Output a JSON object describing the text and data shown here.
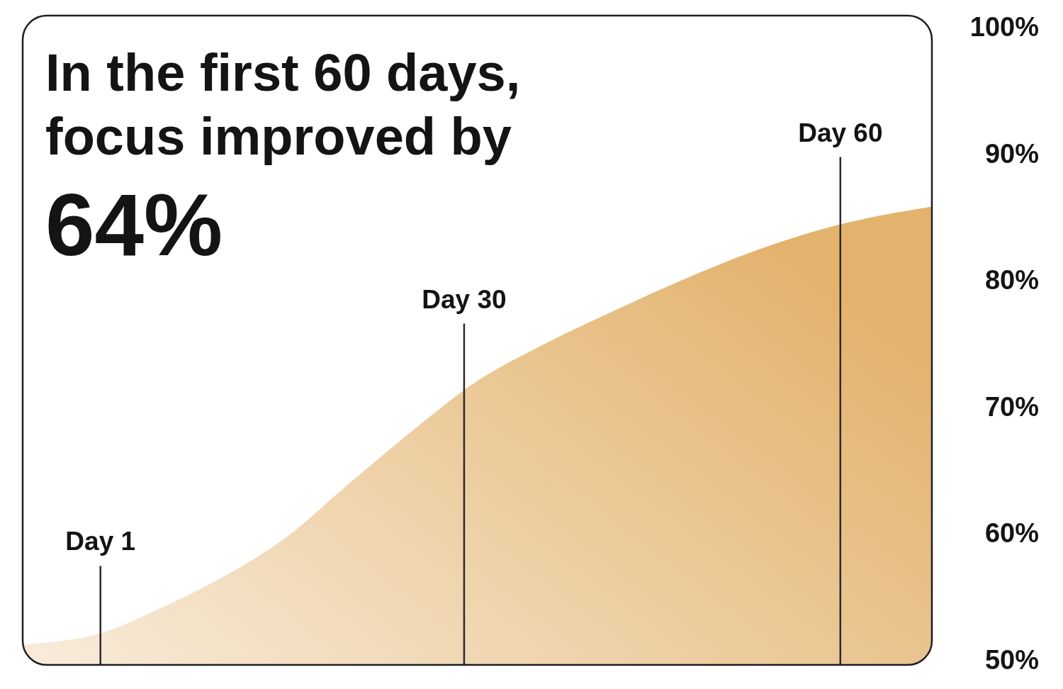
{
  "chart_data": {
    "type": "area",
    "title": "In the first 60 days, focus improved by",
    "subtitle": "64%",
    "x": [
      -5.2,
      1,
      5.6,
      10.7,
      15.7,
      20.8,
      26.0,
      31.0,
      36.3,
      42.0,
      47.6,
      52.6,
      60,
      67.3
    ],
    "values": [
      51.2,
      52.1,
      54.0,
      56.5,
      59.6,
      63.9,
      68.2,
      72.0,
      74.9,
      77.6,
      80.1,
      82.1,
      84.4,
      85.8
    ],
    "color": "#e3b36e",
    "xlim": [
      -5.2,
      67.3
    ],
    "ylim": [
      49.6,
      100.9
    ],
    "yticks": [
      {
        "value": 50,
        "label": "50%"
      },
      {
        "value": 60,
        "label": "60%"
      },
      {
        "value": 70,
        "label": "70%"
      },
      {
        "value": 80,
        "label": "80%"
      },
      {
        "value": 90,
        "label": "90%"
      },
      {
        "value": 100,
        "label": "100%"
      }
    ],
    "tick_labels": "y",
    "ref_lines": [
      {
        "axis": "x",
        "value": 1,
        "label": "Day 1"
      },
      {
        "axis": "x",
        "value": 30,
        "label": "Day 30"
      },
      {
        "axis": "x",
        "value": 60,
        "label": "Day 60"
      }
    ]
  }
}
